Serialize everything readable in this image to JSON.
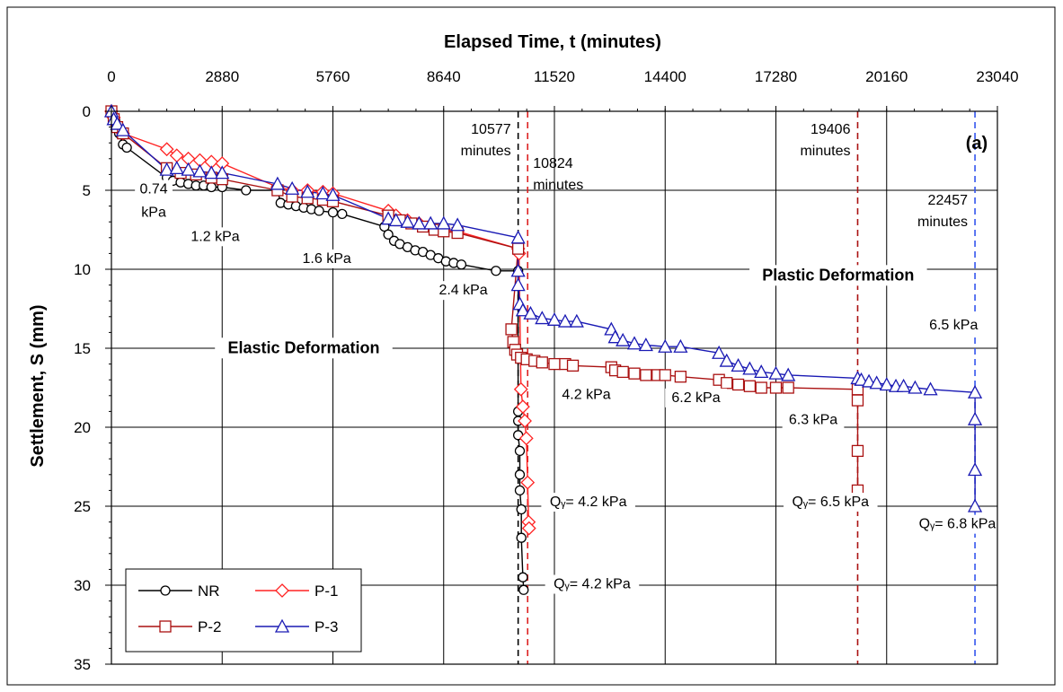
{
  "chart_data": {
    "type": "line",
    "panel_label": "(a)",
    "xlabel": "Elapsed Time, t (minutes)",
    "ylabel": "Settlement, S (mm)",
    "xlim": [
      0,
      23040
    ],
    "ylim": [
      0,
      35
    ],
    "y_inverted": true,
    "x_axis_position": "top",
    "x_ticks": [
      0,
      2880,
      5760,
      8640,
      11520,
      14400,
      17280,
      20160,
      23040
    ],
    "y_ticks": [
      0,
      5,
      10,
      15,
      20,
      25,
      30,
      35
    ],
    "grid": true,
    "legend_position": "bottom-left",
    "series": [
      {
        "name": "NR",
        "color": "#000000",
        "marker": "circle",
        "points": [
          [
            0,
            0
          ],
          [
            100,
            0.6
          ],
          [
            200,
            1.4
          ],
          [
            300,
            2.1
          ],
          [
            400,
            2.3
          ],
          [
            1440,
            4.2
          ],
          [
            1600,
            4.4
          ],
          [
            1800,
            4.5
          ],
          [
            2000,
            4.6
          ],
          [
            2200,
            4.7
          ],
          [
            2400,
            4.7
          ],
          [
            2600,
            4.8
          ],
          [
            2880,
            4.8
          ],
          [
            3500,
            5.0
          ],
          [
            4320,
            5.0
          ],
          [
            4400,
            5.8
          ],
          [
            4600,
            5.9
          ],
          [
            4800,
            6.0
          ],
          [
            5000,
            6.1
          ],
          [
            5200,
            6.2
          ],
          [
            5400,
            6.3
          ],
          [
            5760,
            6.4
          ],
          [
            6000,
            6.5
          ],
          [
            7100,
            7.3
          ],
          [
            7200,
            7.8
          ],
          [
            7350,
            8.2
          ],
          [
            7500,
            8.4
          ],
          [
            7700,
            8.6
          ],
          [
            7900,
            8.8
          ],
          [
            8100,
            8.9
          ],
          [
            8300,
            9.1
          ],
          [
            8500,
            9.3
          ],
          [
            8700,
            9.5
          ],
          [
            8900,
            9.6
          ],
          [
            9100,
            9.7
          ],
          [
            10000,
            10.1
          ],
          [
            10577,
            10.1
          ],
          [
            10577,
            19.0
          ],
          [
            10577,
            19.6
          ],
          [
            10577,
            20.5
          ],
          [
            10620,
            21.5
          ],
          [
            10620,
            23.0
          ],
          [
            10620,
            24.0
          ],
          [
            10660,
            25.2
          ],
          [
            10660,
            27.0
          ],
          [
            10700,
            29.5
          ],
          [
            10720,
            30.3
          ]
        ]
      },
      {
        "name": "P-1",
        "color": "#ff2222",
        "marker": "diamond",
        "points": [
          [
            0,
            0
          ],
          [
            60,
            0.4
          ],
          [
            150,
            0.9
          ],
          [
            300,
            1.4
          ],
          [
            1440,
            2.4
          ],
          [
            1700,
            2.8
          ],
          [
            2000,
            3.0
          ],
          [
            2300,
            3.1
          ],
          [
            2600,
            3.2
          ],
          [
            2880,
            3.3
          ],
          [
            4320,
            4.8
          ],
          [
            4700,
            5.0
          ],
          [
            5100,
            5.0
          ],
          [
            5500,
            5.1
          ],
          [
            5760,
            5.2
          ],
          [
            7200,
            6.3
          ],
          [
            7400,
            6.6
          ],
          [
            7700,
            6.9
          ],
          [
            8000,
            7.1
          ],
          [
            8300,
            7.3
          ],
          [
            8640,
            7.5
          ],
          [
            9000,
            7.6
          ],
          [
            10577,
            8.7
          ],
          [
            10600,
            9.0
          ],
          [
            10650,
            17.6
          ],
          [
            10700,
            18.7
          ],
          [
            10750,
            19.6
          ],
          [
            10790,
            20.7
          ],
          [
            10824,
            23.5
          ],
          [
            10850,
            26.0
          ],
          [
            10860,
            26.4
          ]
        ]
      },
      {
        "name": "P-2",
        "color": "#aa1111",
        "marker": "square",
        "points": [
          [
            0,
            0
          ],
          [
            60,
            0.5
          ],
          [
            150,
            1.0
          ],
          [
            300,
            1.4
          ],
          [
            1440,
            3.6
          ],
          [
            1800,
            3.9
          ],
          [
            2200,
            4.0
          ],
          [
            2600,
            4.2
          ],
          [
            2880,
            4.3
          ],
          [
            4320,
            5.0
          ],
          [
            4700,
            5.4
          ],
          [
            5100,
            5.5
          ],
          [
            5500,
            5.6
          ],
          [
            5760,
            5.7
          ],
          [
            7200,
            6.6
          ],
          [
            7500,
            6.9
          ],
          [
            7800,
            7.1
          ],
          [
            8100,
            7.3
          ],
          [
            8400,
            7.5
          ],
          [
            8640,
            7.6
          ],
          [
            9000,
            7.7
          ],
          [
            10577,
            8.7
          ],
          [
            10400,
            13.8
          ],
          [
            10450,
            14.6
          ],
          [
            10500,
            15.1
          ],
          [
            10550,
            15.4
          ],
          [
            10650,
            15.6
          ],
          [
            10800,
            15.7
          ],
          [
            11000,
            15.8
          ],
          [
            11200,
            15.9
          ],
          [
            11520,
            16.0
          ],
          [
            11800,
            16.0
          ],
          [
            12000,
            16.1
          ],
          [
            13000,
            16.2
          ],
          [
            13100,
            16.4
          ],
          [
            13300,
            16.5
          ],
          [
            13600,
            16.6
          ],
          [
            13900,
            16.7
          ],
          [
            14200,
            16.7
          ],
          [
            14400,
            16.7
          ],
          [
            14800,
            16.8
          ],
          [
            15800,
            17.0
          ],
          [
            16000,
            17.2
          ],
          [
            16300,
            17.3
          ],
          [
            16600,
            17.4
          ],
          [
            16900,
            17.5
          ],
          [
            17280,
            17.5
          ],
          [
            17600,
            17.5
          ],
          [
            19406,
            17.6
          ],
          [
            19406,
            18.3
          ],
          [
            19406,
            21.5
          ],
          [
            19406,
            24.0
          ]
        ]
      },
      {
        "name": "P-3",
        "color": "#1a1ab4",
        "marker": "triangle",
        "points": [
          [
            0,
            0
          ],
          [
            60,
            0.5
          ],
          [
            150,
            0.8
          ],
          [
            300,
            1.2
          ],
          [
            1440,
            3.7
          ],
          [
            1700,
            3.6
          ],
          [
            2000,
            3.7
          ],
          [
            2300,
            3.8
          ],
          [
            2600,
            3.9
          ],
          [
            2880,
            3.9
          ],
          [
            4320,
            4.6
          ],
          [
            4700,
            4.9
          ],
          [
            5100,
            5.1
          ],
          [
            5500,
            5.2
          ],
          [
            5760,
            5.3
          ],
          [
            7200,
            6.8
          ],
          [
            7400,
            6.9
          ],
          [
            7700,
            7.0
          ],
          [
            8000,
            7.1
          ],
          [
            8300,
            7.1
          ],
          [
            8640,
            7.1
          ],
          [
            9000,
            7.2
          ],
          [
            10577,
            8.0
          ],
          [
            10577,
            10.1
          ],
          [
            10577,
            11.0
          ],
          [
            10620,
            12.2
          ],
          [
            10700,
            12.6
          ],
          [
            10900,
            12.8
          ],
          [
            11200,
            13.1
          ],
          [
            11520,
            13.2
          ],
          [
            11800,
            13.3
          ],
          [
            12100,
            13.3
          ],
          [
            13000,
            13.8
          ],
          [
            13100,
            14.3
          ],
          [
            13300,
            14.5
          ],
          [
            13600,
            14.7
          ],
          [
            13900,
            14.8
          ],
          [
            14400,
            14.9
          ],
          [
            14800,
            14.9
          ],
          [
            15800,
            15.3
          ],
          [
            16000,
            15.8
          ],
          [
            16300,
            16.1
          ],
          [
            16600,
            16.3
          ],
          [
            16900,
            16.5
          ],
          [
            17280,
            16.6
          ],
          [
            17600,
            16.7
          ],
          [
            19406,
            16.9
          ],
          [
            19500,
            17.0
          ],
          [
            19700,
            17.1
          ],
          [
            19900,
            17.2
          ],
          [
            20160,
            17.3
          ],
          [
            20400,
            17.4
          ],
          [
            20600,
            17.4
          ],
          [
            20900,
            17.5
          ],
          [
            21300,
            17.6
          ],
          [
            22457,
            17.8
          ],
          [
            22457,
            19.5
          ],
          [
            22457,
            22.7
          ],
          [
            22457,
            25.0
          ]
        ]
      }
    ],
    "reference_lines": [
      {
        "x": 10577,
        "color": "#000000",
        "label_lines": [
          "10577",
          "minutes"
        ]
      },
      {
        "x": 10824,
        "color": "#dd2222",
        "label_lines": [
          "10824",
          "minutes"
        ]
      },
      {
        "x": 19406,
        "color": "#aa1111",
        "label_lines": [
          "19406",
          "minutes"
        ]
      },
      {
        "x": 22457,
        "color": "#3355ee",
        "label_lines": [
          "22457",
          "minutes"
        ]
      }
    ],
    "annotations": [
      {
        "text_lines": [
          "0.74",
          "kPa"
        ],
        "x": 1100,
        "y": 5.2
      },
      {
        "text_lines": [
          "1.2 kPa"
        ],
        "x": 2700,
        "y": 8.2
      },
      {
        "text_lines": [
          "1.6 kPa"
        ],
        "x": 5600,
        "y": 9.6
      },
      {
        "text_lines": [
          "2.4 kPa"
        ],
        "x": 9150,
        "y": 11.6
      },
      {
        "text_lines": [
          "4.2 kPa"
        ],
        "x": 12350,
        "y": 18.2
      },
      {
        "text_lines": [
          "6.2 kPa"
        ],
        "x": 15200,
        "y": 18.4
      },
      {
        "text_lines": [
          "6.3 kPa"
        ],
        "x": 18250,
        "y": 19.8
      },
      {
        "text_lines": [
          "6.5 kPa"
        ],
        "x": 21900,
        "y": 13.8
      },
      {
        "text_lines": [
          "Elastic Deformation"
        ],
        "x": 5000,
        "y": 15.3,
        "bold": true
      },
      {
        "text_lines": [
          "Plastic Deformation"
        ],
        "x": 18900,
        "y": 10.7,
        "bold": true
      },
      {
        "text_lines": [
          "Qᵧ= 4.2 kPa"
        ],
        "x": 12400,
        "y": 25.0
      },
      {
        "text_lines": [
          "Qᵧ= 6.5 kPa"
        ],
        "x": 18700,
        "y": 25.0
      },
      {
        "text_lines": [
          "Qᵧ= 6.8 kPa"
        ],
        "x": 22000,
        "y": 26.4
      },
      {
        "text_lines": [
          "Qᵧ= 4.2 kPa"
        ],
        "x": 12500,
        "y": 30.2
      }
    ]
  }
}
